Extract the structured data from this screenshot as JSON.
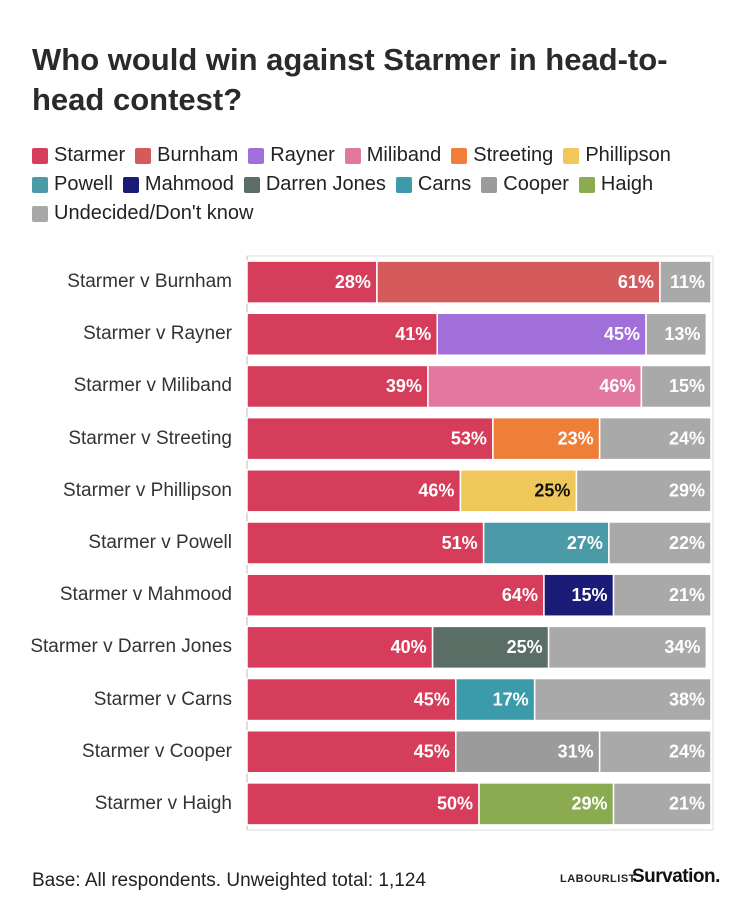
{
  "chart_data": {
    "type": "stacked-bar-horizontal",
    "title": "Who would win against Starmer in head-to-head contest?",
    "categories": [
      "Starmer v Burnham",
      "Starmer v Rayner",
      "Starmer v Miliband",
      "Starmer v Streeting",
      "Starmer v Phillipson",
      "Starmer v Powell",
      "Starmer v Mahmood",
      "Starmer v Darren Jones",
      "Starmer v Carns",
      "Starmer v Cooper",
      "Starmer v Haigh"
    ],
    "series": [
      {
        "name": "Starmer",
        "color": "#d63d5b",
        "values": [
          28,
          41,
          39,
          53,
          46,
          51,
          64,
          40,
          45,
          45,
          50
        ],
        "value_labels": [
          "28%",
          "41%",
          "39%",
          "53%",
          "46%",
          "51%",
          "64%",
          "40%",
          "45%",
          "45%",
          "50%"
        ]
      },
      {
        "name": "Burnham",
        "color": "#d55a5c",
        "values": [
          61,
          null,
          null,
          null,
          null,
          null,
          null,
          null,
          null,
          null,
          null
        ],
        "value_labels": [
          "61%",
          null,
          null,
          null,
          null,
          null,
          null,
          null,
          null,
          null,
          null
        ]
      },
      {
        "name": "Rayner",
        "color": "#a06fd9",
        "values": [
          null,
          45,
          null,
          null,
          null,
          null,
          null,
          null,
          null,
          null,
          null
        ],
        "value_labels": [
          null,
          "45%",
          null,
          null,
          null,
          null,
          null,
          null,
          null,
          null,
          null
        ]
      },
      {
        "name": "Miliband",
        "color": "#e2779f",
        "values": [
          null,
          null,
          46,
          null,
          null,
          null,
          null,
          null,
          null,
          null,
          null
        ],
        "value_labels": [
          null,
          null,
          "46%",
          null,
          null,
          null,
          null,
          null,
          null,
          null,
          null
        ]
      },
      {
        "name": "Streeting",
        "color": "#ee7e38",
        "values": [
          null,
          null,
          null,
          23,
          null,
          null,
          null,
          null,
          null,
          null,
          null
        ],
        "value_labels": [
          null,
          null,
          null,
          "23%",
          null,
          null,
          null,
          null,
          null,
          null,
          null
        ]
      },
      {
        "name": "Phillipson",
        "color": "#f0c75a",
        "values": [
          null,
          null,
          null,
          null,
          25,
          null,
          null,
          null,
          null,
          null,
          null
        ],
        "value_labels": [
          null,
          null,
          null,
          null,
          "25%",
          null,
          null,
          null,
          null,
          null,
          null
        ]
      },
      {
        "name": "Powell",
        "color": "#4b9aa8",
        "values": [
          null,
          null,
          null,
          null,
          null,
          27,
          null,
          null,
          null,
          null,
          null
        ],
        "value_labels": [
          null,
          null,
          null,
          null,
          null,
          "27%",
          null,
          null,
          null,
          null,
          null
        ]
      },
      {
        "name": "Mahmood",
        "color": "#1b1b78",
        "values": [
          null,
          null,
          null,
          null,
          null,
          null,
          15,
          null,
          null,
          null,
          null
        ],
        "value_labels": [
          null,
          null,
          null,
          null,
          null,
          null,
          "15%",
          null,
          null,
          null,
          null
        ]
      },
      {
        "name": "Darren Jones",
        "color": "#5b6e66",
        "values": [
          null,
          null,
          null,
          null,
          null,
          null,
          null,
          25,
          null,
          null,
          null
        ],
        "value_labels": [
          null,
          null,
          null,
          null,
          null,
          null,
          null,
          "25%",
          null,
          null,
          null
        ]
      },
      {
        "name": "Carns",
        "color": "#3b9bab",
        "values": [
          null,
          null,
          null,
          null,
          null,
          null,
          null,
          null,
          17,
          null,
          null
        ],
        "value_labels": [
          null,
          null,
          null,
          null,
          null,
          null,
          null,
          null,
          "17%",
          null,
          null
        ]
      },
      {
        "name": "Cooper",
        "color": "#9b9b9b",
        "values": [
          null,
          null,
          null,
          null,
          null,
          null,
          null,
          null,
          null,
          31,
          null
        ],
        "value_labels": [
          null,
          null,
          null,
          null,
          null,
          null,
          null,
          null,
          null,
          "31%",
          null
        ]
      },
      {
        "name": "Haigh",
        "color": "#8aab50",
        "values": [
          null,
          null,
          null,
          null,
          null,
          null,
          null,
          null,
          null,
          null,
          29
        ],
        "value_labels": [
          null,
          null,
          null,
          null,
          null,
          null,
          null,
          null,
          null,
          null,
          "29%"
        ]
      },
      {
        "name": "Undecided/Don't know",
        "color": "#a9a9a9",
        "values": [
          11,
          13,
          15,
          24,
          29,
          22,
          21,
          34,
          38,
          24,
          21
        ],
        "value_labels": [
          "11%",
          "13%",
          "15%",
          "24%",
          "29%",
          "22%",
          "21%",
          "34%",
          "38%",
          "24%",
          "21%"
        ]
      }
    ],
    "xlim": [
      0,
      100
    ],
    "footnote": "Base: All respondents. Unweighted total: 1,124",
    "logos": [
      "LABOURLIST",
      "Survation."
    ]
  }
}
